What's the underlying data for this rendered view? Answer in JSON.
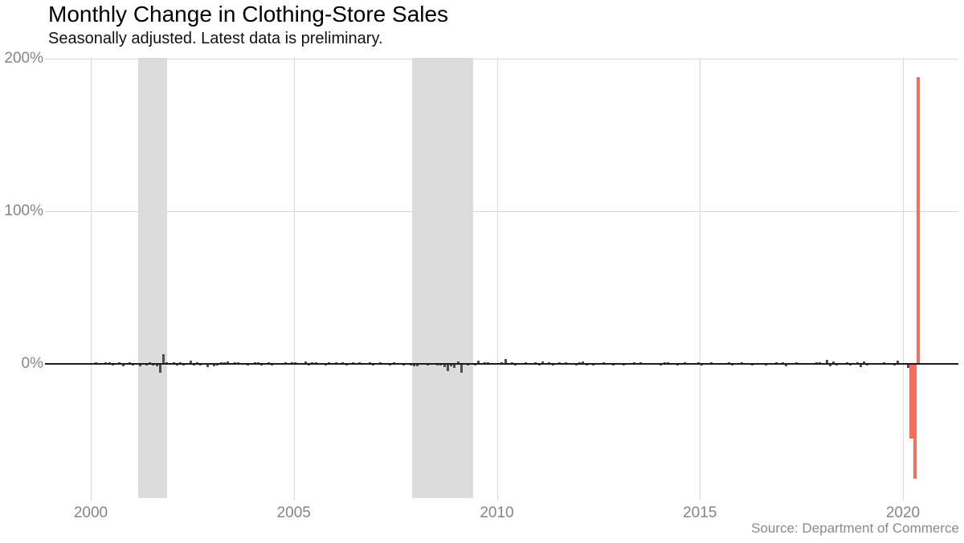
{
  "header": {
    "title": "Monthly Change in Clothing-Store Sales",
    "subtitle": "Seasonally adjusted. Latest data is preliminary."
  },
  "footer": {
    "source": "Source: Department of Commerce"
  },
  "colors": {
    "bar_gray": "#4d4d4d",
    "bar_red": "#f4705c",
    "recession_band": "#dcdcdc",
    "gridline": "#d9d9d9",
    "zero_line": "#1c1c1c",
    "axis_label": "#858585",
    "title_text": "#000000",
    "source_text": "#8a8a8a",
    "background": "#ffffff"
  },
  "chart_data": {
    "type": "bar",
    "title": "Monthly Change in Clothing-Store Sales",
    "subtitle": "Seasonally adjusted. Latest data is preliminary.",
    "xlabel": "",
    "ylabel": "",
    "unit": "percent",
    "frequency": "monthly",
    "start_month": "2000-01",
    "end_month": "2020-05",
    "ylim": [
      -88,
      200
    ],
    "xlim": [
      1998.95,
      2021.36
    ],
    "grid": true,
    "legend": "none",
    "y_ticks": [
      {
        "value": 200,
        "label": "200%"
      },
      {
        "value": 100,
        "label": "100%"
      },
      {
        "value": 0,
        "label": "0%"
      }
    ],
    "x_ticks": [
      {
        "value": 2000,
        "label": "2000"
      },
      {
        "value": 2005,
        "label": "2005"
      },
      {
        "value": 2010,
        "label": "2010"
      },
      {
        "value": 2015,
        "label": "2015"
      },
      {
        "value": 2020,
        "label": "2020"
      }
    ],
    "recession_bands": [
      {
        "from": 2001.17,
        "to": 2001.87
      },
      {
        "from": 2007.92,
        "to": 2009.42
      }
    ],
    "highlight": {
      "from_index": 242,
      "note": "Mar-May 2020 shown in red (preliminary)"
    },
    "key_points": {
      "2020-03": -49,
      "2020-04": -75,
      "2020-05": 188,
      "2001-09": -6.0,
      "2001-10": 6.2
    },
    "values": [
      -0.7,
      1.0,
      0.4,
      -0.6,
      1.1,
      0.8,
      -1.0,
      0.6,
      0.9,
      -1.4,
      0.5,
      1.0,
      -0.9,
      0.6,
      -1.8,
      0.4,
      -1.3,
      0.9,
      -1.0,
      -1.4,
      -6.0,
      6.2,
      1.0,
      -0.6,
      1.3,
      -0.9,
      0.8,
      -1.2,
      0.6,
      2.0,
      -1.1,
      0.9,
      -0.8,
      0.5,
      -2.1,
      0.7,
      -1.5,
      -0.8,
      1.2,
      0.8,
      1.5,
      -0.5,
      0.9,
      1.1,
      -0.7,
      0.4,
      -0.9,
      0.6,
      0.8,
      0.9,
      -1.1,
      0.5,
      1.3,
      -0.8,
      0.6,
      -0.5,
      0.7,
      0.8,
      -0.6,
      0.9,
      1.0,
      -0.7,
      0.5,
      1.4,
      -0.9,
      0.8,
      1.1,
      -0.5,
      0.6,
      -0.8,
      0.9,
      0.5,
      1.2,
      -0.6,
      0.8,
      -1.0,
      0.5,
      0.9,
      -0.7,
      1.0,
      -0.5,
      0.6,
      0.8,
      -0.9,
      0.7,
      1.1,
      -0.6,
      0.5,
      -0.9,
      0.8,
      -0.5,
      0.6,
      -1.0,
      0.4,
      -1.2,
      -1.8,
      -1.5,
      -0.4,
      0.6,
      -0.9,
      -0.5,
      0.4,
      -0.8,
      -1.2,
      -1.9,
      -4.8,
      -1.6,
      -2.4,
      1.4,
      -5.8,
      0.7,
      -1.1,
      0.5,
      -0.8,
      2.0,
      -0.6,
      0.8,
      1.2,
      0.6,
      -0.5,
      0.5,
      1.1,
      3.0,
      -0.6,
      0.8,
      -0.9,
      0.6,
      -0.5,
      0.9,
      0.7,
      -0.6,
      0.8,
      -0.8,
      1.5,
      -0.6,
      0.9,
      -1.1,
      0.5,
      0.8,
      -0.7,
      1.3,
      -0.5,
      0.6,
      -0.9,
      0.9,
      1.6,
      -1.2,
      0.5,
      -0.8,
      0.7,
      -0.6,
      0.9,
      -0.5,
      0.6,
      -0.8,
      0.5,
      0.6,
      -0.9,
      0.5,
      -0.6,
      0.8,
      -0.5,
      0.9,
      -0.7,
      0.5,
      0.7,
      -0.6,
      0.4,
      -1.2,
      0.8,
      1.1,
      -0.5,
      0.6,
      -0.8,
      0.5,
      0.9,
      -0.6,
      0.7,
      -0.5,
      0.8,
      -0.9,
      0.6,
      -0.5,
      0.8,
      -0.7,
      0.5,
      0.6,
      -0.5,
      0.9,
      -0.8,
      0.5,
      -0.7,
      0.8,
      -0.6,
      0.5,
      -0.9,
      0.7,
      -0.5,
      0.6,
      -0.8,
      0.5,
      -0.6,
      0.9,
      -0.5,
      1.0,
      -1.5,
      0.6,
      -0.5,
      0.8,
      -0.6,
      0.5,
      0.7,
      -0.5,
      0.6,
      0.9,
      1.2,
      -0.6,
      2.4,
      -1.8,
      1.4,
      -0.9,
      0.6,
      -0.5,
      0.8,
      -1.2,
      0.5,
      0.9,
      -2.0,
      1.5,
      -0.8,
      0.5,
      -0.6,
      0.7,
      -0.5,
      0.9,
      -0.6,
      0.5,
      -0.8,
      2.2,
      -0.5,
      0.5,
      -2.5,
      -49,
      -75,
      188
    ]
  }
}
